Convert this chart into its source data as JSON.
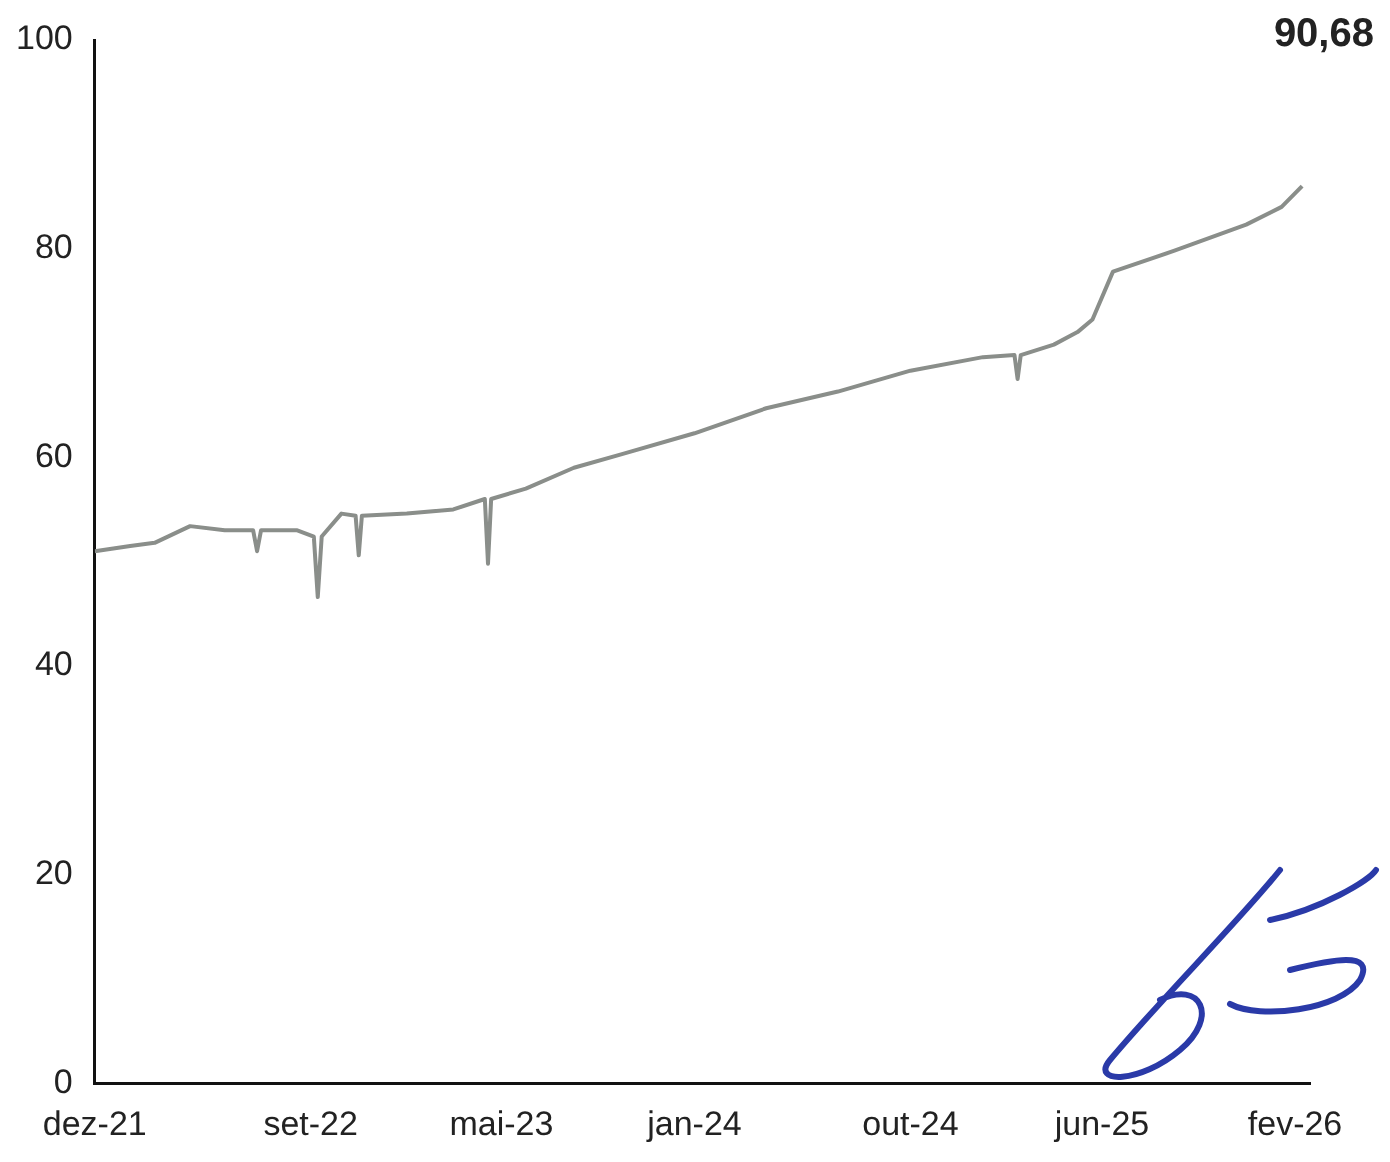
{
  "chart_data": {
    "type": "line",
    "x": [
      "2021-12-01",
      "2022-01-15",
      "2022-02-15",
      "2022-04-01",
      "2022-05-15",
      "2022-06-20",
      "2022-06-25",
      "2022-06-30",
      "2022-08-15",
      "2022-09-05",
      "2022-09-10",
      "2022-09-15",
      "2022-10-10",
      "2022-10-28",
      "2022-11-01",
      "2022-11-05",
      "2023-01-01",
      "2023-03-01",
      "2023-04-10",
      "2023-04-14",
      "2023-04-18",
      "2023-06-01",
      "2023-08-01",
      "2023-10-01",
      "2024-01-01",
      "2024-04-01",
      "2024-07-01",
      "2024-10-01",
      "2025-01-01",
      "2025-02-10",
      "2025-02-14",
      "2025-02-18",
      "2025-04-01",
      "2025-05-01",
      "2025-05-20",
      "2025-06-15",
      "2025-09-01",
      "2025-12-01",
      "2026-01-15",
      "2026-02-10"
    ],
    "series": [
      {
        "color": "#8a8e8a",
        "values": [
          51,
          51.5,
          51.8,
          53.4,
          53,
          53,
          51,
          53,
          53,
          52.4,
          46.6,
          52.4,
          54.6,
          54.4,
          50.6,
          54.4,
          54.6,
          55,
          56,
          49.8,
          56,
          57,
          59,
          60.3,
          62.3,
          64.7,
          66.3,
          68.3,
          69.6,
          69.8,
          67.5,
          69.8,
          70.8,
          72,
          73.2,
          77.8,
          79.8,
          82.3,
          84,
          86
        ]
      }
    ],
    "ylim": [
      0,
      100
    ],
    "yticks": [
      0,
      20,
      40,
      60,
      80,
      100
    ],
    "xlim": [
      "2021-12-01",
      "2026-02-20"
    ],
    "xticks": [
      {
        "value": "2021-12-01",
        "label": "dez-21"
      },
      {
        "value": "2022-09-01",
        "label": "set-22"
      },
      {
        "value": "2023-05-01",
        "label": "mai-23"
      },
      {
        "value": "2024-01-01",
        "label": "jan-24"
      },
      {
        "value": "2024-10-01",
        "label": "out-24"
      },
      {
        "value": "2025-06-01",
        "label": "jun-25"
      },
      {
        "value": "2026-02-01",
        "label": "fev-26"
      }
    ],
    "annotations": [
      "90,68"
    ],
    "grid": false,
    "legend": false,
    "marker": "none",
    "line_style": "solid"
  }
}
